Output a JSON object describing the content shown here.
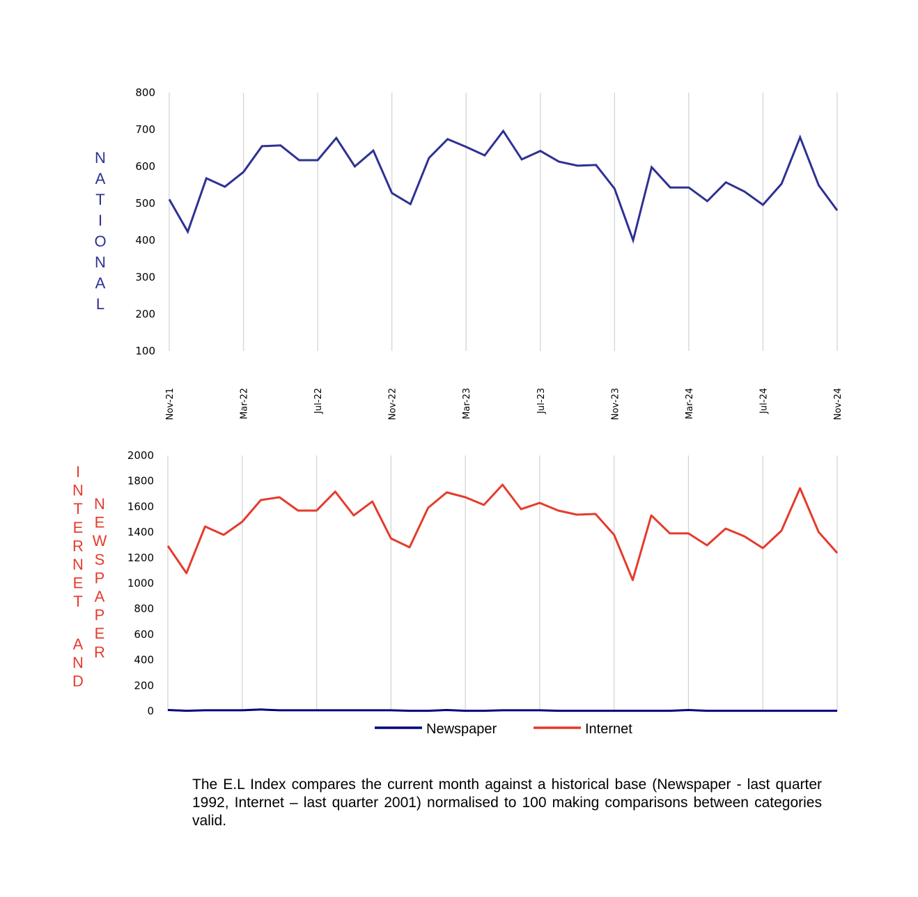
{
  "chart_data": [
    {
      "type": "line",
      "title": "",
      "ylabel": "NATIONAL",
      "xlabel": "",
      "ylim": [
        100,
        800
      ],
      "yticks": [
        100,
        200,
        300,
        400,
        500,
        600,
        700,
        800
      ],
      "x_tick_labels": [
        "Nov-21",
        "Mar-22",
        "Jul-22",
        "Nov-22",
        "Mar-23",
        "Jul-23",
        "Nov-23",
        "Mar-24",
        "Jul-24",
        "Nov-24"
      ],
      "x_tick_indices": [
        0,
        4,
        8,
        12,
        16,
        20,
        24,
        28,
        32,
        36
      ],
      "grid": "vertical",
      "series": [
        {
          "name": "National",
          "color": "#2E3192",
          "values": [
            511,
            423,
            568,
            545,
            585,
            655,
            657,
            617,
            617,
            677,
            600,
            643,
            528,
            498,
            623,
            674,
            653,
            630,
            696,
            619,
            642,
            613,
            602,
            604,
            540,
            400,
            598,
            543,
            543,
            506,
            557,
            532,
            496,
            553,
            679,
            549,
            481
          ]
        }
      ]
    },
    {
      "type": "line",
      "title": "",
      "ylabel": "INTERNET AND NEWSPAPER",
      "ylabel_columns": [
        "INTERNET AND",
        "NEWSPAPER"
      ],
      "xlabel": "",
      "ylim": [
        0,
        2000
      ],
      "yticks": [
        0,
        200,
        400,
        600,
        800,
        1000,
        1200,
        1400,
        1600,
        1800,
        2000
      ],
      "grid": "vertical",
      "legend": "bottom",
      "series": [
        {
          "name": "Newspaper",
          "color": "#000080",
          "values": [
            8,
            2,
            6,
            6,
            6,
            12,
            6,
            6,
            6,
            6,
            6,
            6,
            6,
            2,
            2,
            8,
            2,
            2,
            6,
            6,
            6,
            2,
            2,
            2,
            2,
            2,
            2,
            2,
            8,
            2,
            2,
            2,
            2,
            2,
            2,
            2,
            2
          ]
        },
        {
          "name": "Internet",
          "color": "#E53B2C",
          "values": [
            1292,
            1079,
            1444,
            1379,
            1482,
            1651,
            1673,
            1569,
            1569,
            1717,
            1531,
            1640,
            1351,
            1281,
            1591,
            1711,
            1673,
            1613,
            1771,
            1580,
            1629,
            1569,
            1537,
            1542,
            1379,
            1025,
            1531,
            1390,
            1390,
            1297,
            1428,
            1368,
            1275,
            1411,
            1744,
            1401,
            1237
          ]
        }
      ]
    }
  ],
  "footnote": "The E.L Index compares the current month against a historical base (Newspaper - last quarter 1992, Internet – last quarter 2001) normalised to 100 making comparisons between categories valid."
}
